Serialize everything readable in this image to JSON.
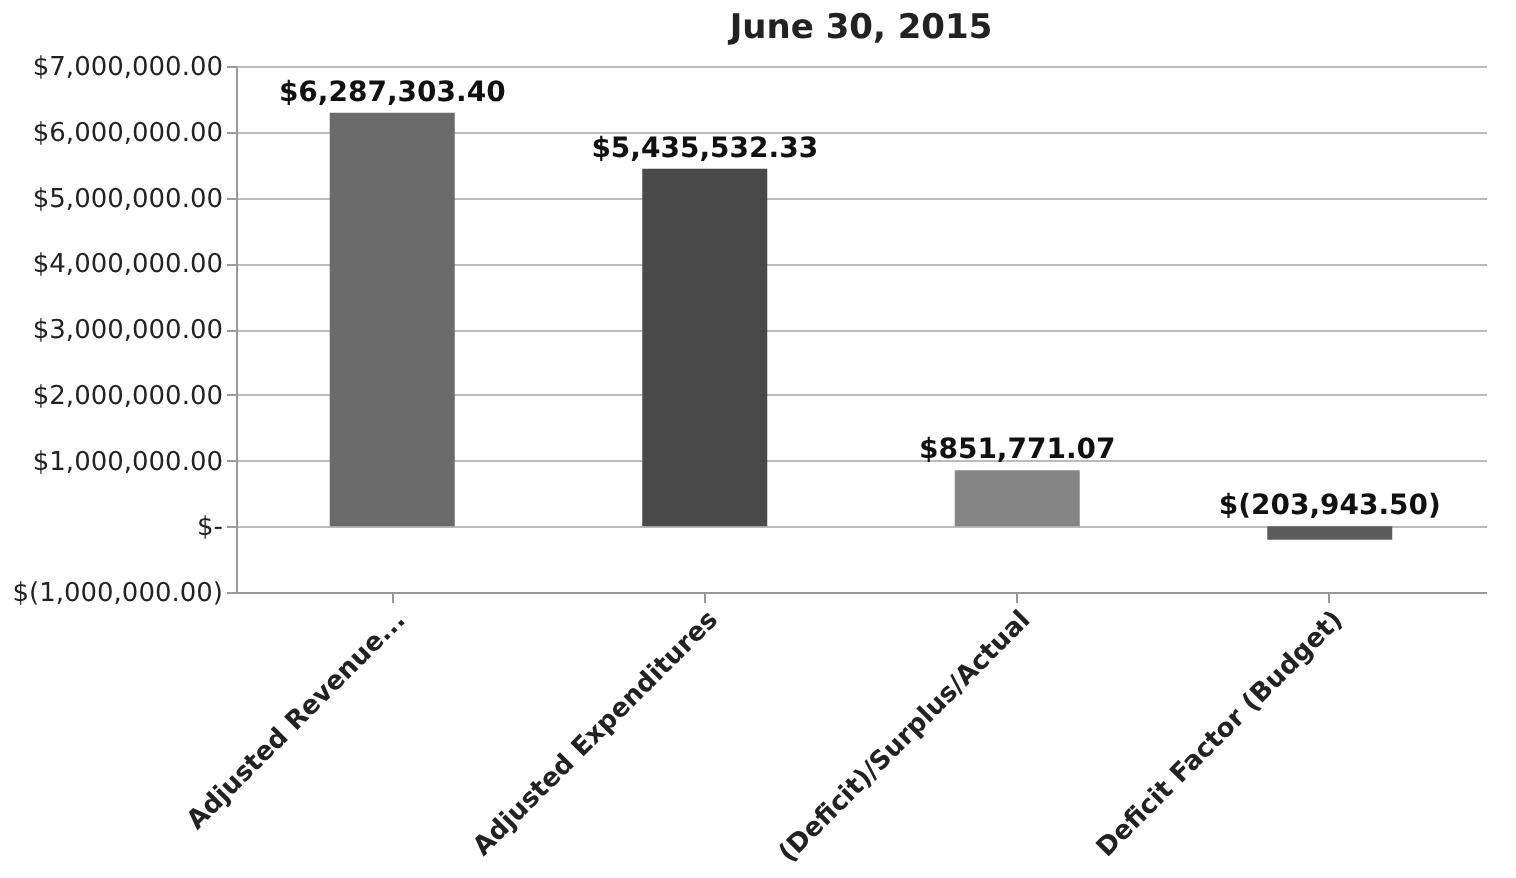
{
  "chart_data": {
    "type": "bar",
    "title": "June 30, 2015",
    "categories": [
      "Adjusted Revenue...",
      "Adjusted Expenditures",
      "(Deficit)/Surplus/Actual",
      "Deficit Factor (Budget)"
    ],
    "values": [
      6287303.4,
      5435532.33,
      851771.07,
      -203943.5
    ],
    "colors": [
      "#6b6b6b",
      "#4a4a4a",
      "#858585",
      "#5c5c5c"
    ],
    "value_labels": [
      "$6,287,303.40",
      "$5,435,532.33",
      "$851,771.07",
      "$(203,943.50)"
    ],
    "ylim": [
      -1000000,
      7000000
    ],
    "yticks": [
      {
        "value": -1000000,
        "label": "$(1,000,000.00)"
      },
      {
        "value": 0,
        "label": "$-"
      },
      {
        "value": 1000000,
        "label": "$1,000,000.00"
      },
      {
        "value": 2000000,
        "label": "$2,000,000.00"
      },
      {
        "value": 3000000,
        "label": "$3,000,000.00"
      },
      {
        "value": 4000000,
        "label": "$4,000,000.00"
      },
      {
        "value": 5000000,
        "label": "$5,000,000.00"
      },
      {
        "value": 6000000,
        "label": "$6,000,000.00"
      },
      {
        "value": 7000000,
        "label": "$7,000,000.00"
      }
    ],
    "grid": "y"
  }
}
